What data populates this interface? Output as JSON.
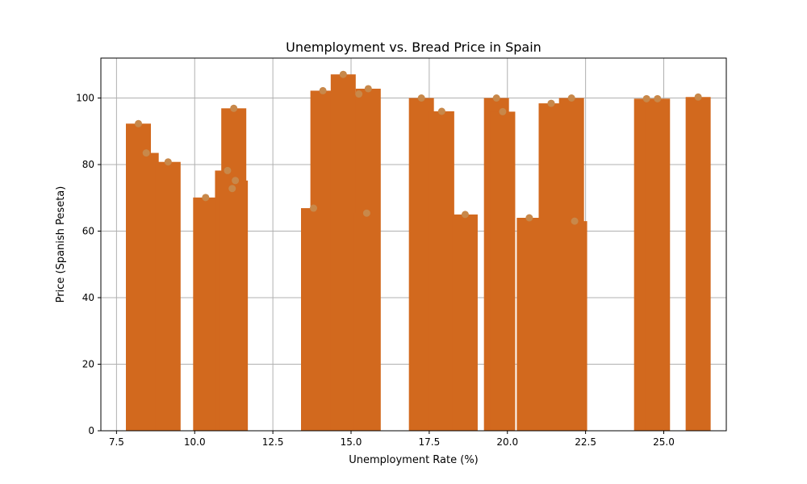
{
  "chart_data": {
    "type": "bar",
    "title": "Unemployment vs. Bread Price in Spain",
    "xlabel": "Unemployment Rate (%)",
    "ylabel": "Price (Spanish Peseta)",
    "xlim": [
      7.0,
      27.0
    ],
    "ylim": [
      0,
      112
    ],
    "xticks": [
      7.5,
      10.0,
      12.5,
      15.0,
      17.5,
      20.0,
      22.5,
      25.0
    ],
    "xtick_labels": [
      "7.5",
      "10.0",
      "12.5",
      "15.0",
      "17.5",
      "20.0",
      "22.5",
      "25.0"
    ],
    "yticks": [
      0,
      20,
      40,
      60,
      80,
      100
    ],
    "ytick_labels": [
      "0",
      "20",
      "40",
      "60",
      "80",
      "100"
    ],
    "grid": true,
    "bar_width": 0.8,
    "bar_color": "#d2691e",
    "point_color": "#c8884a",
    "x": [
      8.2,
      8.45,
      9.15,
      10.35,
      11.05,
      11.2,
      11.3,
      11.25,
      13.8,
      14.1,
      14.75,
      15.25,
      15.55,
      15.5,
      17.25,
      17.9,
      18.65,
      19.65,
      19.85,
      20.7,
      21.4,
      22.05,
      22.15,
      24.45,
      24.8,
      26.1
    ],
    "y": [
      92.3,
      83.5,
      80.8,
      70.1,
      78.2,
      72.8,
      75.2,
      96.9,
      66.9,
      102.2,
      107.1,
      101.2,
      102.8,
      65.4,
      100.0,
      96.0,
      65.0,
      100.0,
      95.9,
      64.0,
      98.4,
      100.0,
      63.0,
      99.8,
      99.8,
      100.3
    ]
  }
}
